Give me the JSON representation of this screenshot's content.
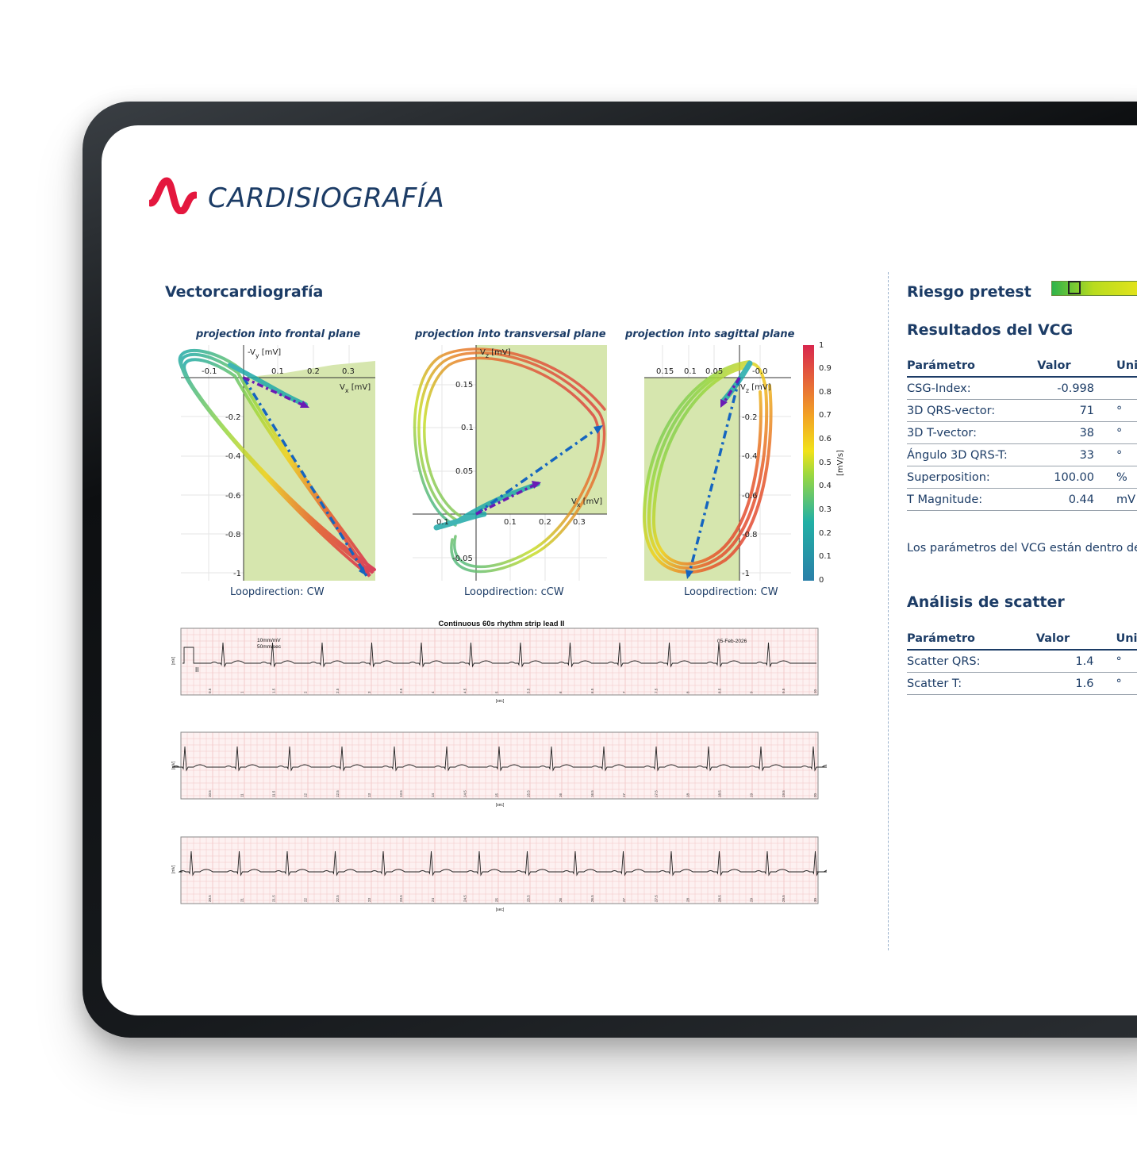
{
  "brand": {
    "name": "CARDISIOGRAFÍA",
    "logo_icon": "cardisio-wave-logo"
  },
  "vcg_section": {
    "title": "Vectorcardiografía",
    "plots": [
      {
        "title": "projection into frontal plane",
        "x_axis_label": "V",
        "x_axis_sub": "x",
        "x_axis_unit": "[mV]",
        "y_axis_label": "-V",
        "y_axis_sub": "y",
        "y_axis_unit": "[mV]",
        "x_ticks": [
          "-0.1",
          "0.1",
          "0.2",
          "0.3"
        ],
        "y_ticks": [
          "-0.2",
          "-0.4",
          "-0.6",
          "-0.8",
          "-1"
        ],
        "loopdirection": "Loopdirection: CW"
      },
      {
        "title": "projection into transversal plane",
        "x_axis_label": "V",
        "x_axis_sub": "x",
        "x_axis_unit": "[mV]",
        "y_axis_label": "V",
        "y_axis_sub": "z",
        "y_axis_unit": "[mV]",
        "x_ticks": [
          "0.1",
          "0.1",
          "0.2",
          "0.3"
        ],
        "y_ticks": [
          "0.15",
          "0.1",
          "0.05",
          "-0.05"
        ],
        "loopdirection": "Loopdirection: cCW"
      },
      {
        "title": "projection into sagittal plane",
        "x_axis_label": "V",
        "x_axis_sub": "z",
        "x_axis_unit": "[mV]",
        "y_axis_label": "",
        "y_axis_sub": "",
        "y_axis_unit": "",
        "x_ticks": [
          "0.15",
          "0.1",
          "0.05",
          "-0.0"
        ],
        "y_ticks": [
          "-0.2",
          "-0.4",
          "-0.6",
          "-0.8",
          "-1"
        ],
        "loopdirection": "Loopdirection: CW"
      }
    ],
    "colorbar": {
      "label": "[mV/s]",
      "ticks": [
        "1",
        "0.9",
        "0.8",
        "0.7",
        "0.6",
        "0.5",
        "0.4",
        "0.3",
        "0.2",
        "0.1",
        "0"
      ]
    }
  },
  "rhythm_strip": {
    "title": "Continuous 60s rhythm strip lead II",
    "calibration_line1": "10mm/mV",
    "calibration_line2": "50mm/sec",
    "date": "05-Feb-2026",
    "lead_label": "II",
    "y_unit": "[mV]",
    "x_unit": "[sec]",
    "row1_ticks": [
      "0.5",
      "1",
      "1.5",
      "2",
      "2.5",
      "3",
      "3.5",
      "4",
      "4.5",
      "5",
      "5.5",
      "6",
      "6.5",
      "7",
      "7.5",
      "8",
      "8.5",
      "9",
      "9.5",
      "10"
    ],
    "row2_ticks": [
      "10.5",
      "11",
      "11.5",
      "12",
      "12.5",
      "13",
      "13.5",
      "14",
      "14.5",
      "15",
      "15.5",
      "16",
      "16.5",
      "17",
      "17.5",
      "18",
      "18.5",
      "19",
      "19.5",
      "20"
    ],
    "row3_ticks": [
      "20.5",
      "21",
      "21.5",
      "22",
      "22.5",
      "23",
      "23.5",
      "24",
      "24.5",
      "25",
      "25.5",
      "26",
      "26.5",
      "27",
      "27.5",
      "28",
      "28.5",
      "29",
      "29.5",
      "30"
    ]
  },
  "right_panel": {
    "risk_title": "Riesgo pretest",
    "risk_level": 0.2,
    "results_title": "Resultados del VCG",
    "results_headers": [
      "Parámetro",
      "Valor",
      "Uni"
    ],
    "results_rows": [
      {
        "param": "CSG-Index:",
        "value": "-0.998",
        "unit": ""
      },
      {
        "param": "3D QRS-vector:",
        "value": "71",
        "unit": "°"
      },
      {
        "param": "3D T-vector:",
        "value": "38",
        "unit": "°"
      },
      {
        "param": "Ángulo 3D QRS-T:",
        "value": "33",
        "unit": "°"
      },
      {
        "param": "Superposition:",
        "value": "100.00",
        "unit": "%"
      },
      {
        "param": "T Magnitude:",
        "value": "0.44",
        "unit": "mV"
      }
    ],
    "results_note": "Los parámetros del VCG están dentro de",
    "scatter_title": "Análisis de scatter",
    "scatter_headers": [
      "Parámetro",
      "Valor",
      "Uni"
    ],
    "scatter_rows": [
      {
        "param": "Scatter QRS:",
        "value": "1.4",
        "unit": "°"
      },
      {
        "param": "Scatter T:",
        "value": "1.6",
        "unit": "°"
      }
    ]
  },
  "colors": {
    "brand_navy": "#1c3c66",
    "brand_red": "#e4173e",
    "plot_fill": "#d6e6ae",
    "arrow_blue": "#1565c0",
    "arrow_purple": "#6a1bb5"
  }
}
